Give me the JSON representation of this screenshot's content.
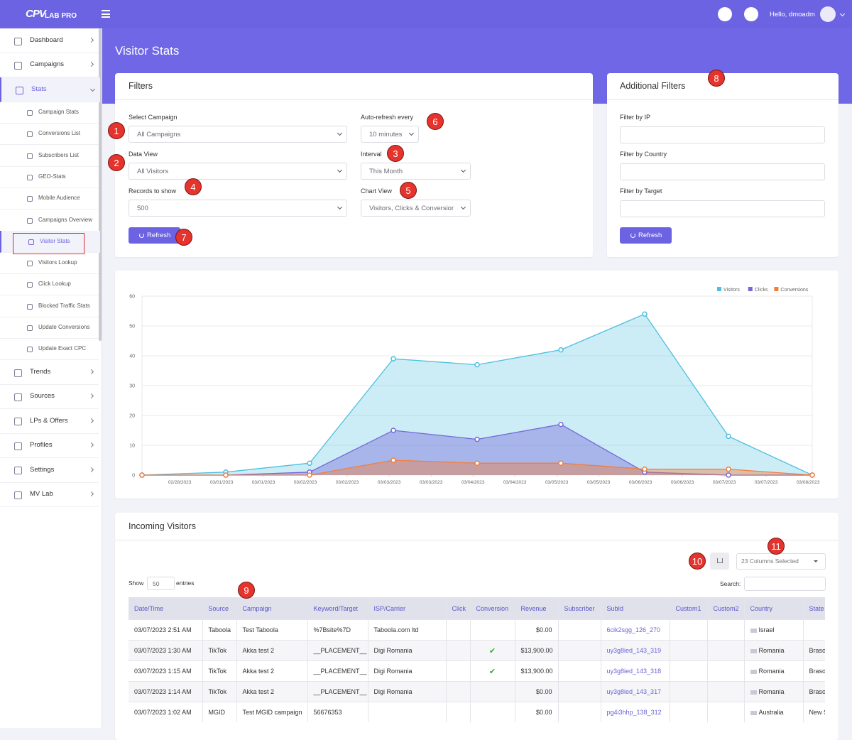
{
  "header": {
    "logo_mark": "CPV",
    "logo_text": "LAB PRO",
    "greeting": "Hello, dmoadm"
  },
  "sidebar": {
    "top": [
      "Dashboard",
      "Campaigns",
      "Stats"
    ],
    "stats_submenu": [
      "Campaign Stats",
      "Conversions List",
      "Subscribers List",
      "GEO-Stats",
      "Mobile Audience",
      "Campaigns Overview",
      "Visitor Stats",
      "Visitors Lookup",
      "Click Lookup",
      "Blocked Traffic Stats",
      "Update Conversions",
      "Update Exact CPC"
    ],
    "bottom": [
      "Trends",
      "Sources",
      "LPs & Offers",
      "Profiles",
      "Settings",
      "MV Lab"
    ]
  },
  "page_title": "Visitor Stats",
  "filters": {
    "title": "Filters",
    "fields": [
      {
        "label": "Select Campaign",
        "value": "All Campaigns"
      },
      {
        "label": "Data View",
        "value": "All Visitors"
      },
      {
        "label": "Records to show",
        "value": "500"
      },
      {
        "label": "Auto-refresh every",
        "value": "10 minutes"
      },
      {
        "label": "Interval",
        "value": "This Month"
      },
      {
        "label": "Chart View",
        "value": "Visitors, Clicks & Conversions"
      }
    ],
    "button": "Refresh"
  },
  "additional_filters": {
    "title": "Additional Filters",
    "fields": [
      "Filter by IP",
      "Filter by Country",
      "Filter by Target"
    ],
    "button": "Refresh"
  },
  "chart_data": {
    "type": "area",
    "x": [
      0,
      1,
      2,
      3,
      4,
      5,
      6,
      7,
      8
    ],
    "xlim": [
      0,
      8
    ],
    "xticks": [
      {
        "value": 0.45,
        "label": "02/28/2023"
      },
      {
        "value": 0.95,
        "label": "03/01/2023"
      },
      {
        "value": 1.45,
        "label": "03/01/2023"
      },
      {
        "value": 1.95,
        "label": "03/02/2023"
      },
      {
        "value": 2.45,
        "label": "03/02/2023"
      },
      {
        "value": 2.95,
        "label": "03/03/2023"
      },
      {
        "value": 3.45,
        "label": "03/03/2023"
      },
      {
        "value": 3.95,
        "label": "03/04/2023"
      },
      {
        "value": 4.45,
        "label": "03/04/2023"
      },
      {
        "value": 4.95,
        "label": "03/05/2023"
      },
      {
        "value": 5.45,
        "label": "03/05/2023"
      },
      {
        "value": 5.95,
        "label": "03/06/2023"
      },
      {
        "value": 6.45,
        "label": "03/06/2023"
      },
      {
        "value": 6.95,
        "label": "03/07/2023"
      },
      {
        "value": 7.45,
        "label": "03/07/2023"
      },
      {
        "value": 7.95,
        "label": "03/08/2023"
      }
    ],
    "ylim": [
      0,
      60
    ],
    "yticks": [
      0,
      10,
      20,
      30,
      40,
      50,
      60
    ],
    "grid": true,
    "legend": "top-right",
    "series": [
      {
        "name": "Visitors",
        "color": "#4dbfe0",
        "values": [
          0,
          1,
          4,
          39,
          37,
          42,
          54,
          13,
          0
        ]
      },
      {
        "name": "Clicks",
        "color": "#7468d8",
        "values": [
          0,
          0,
          1,
          15,
          12,
          17,
          1,
          0,
          0
        ]
      },
      {
        "name": "Conversions",
        "color": "#f07f3c",
        "values": [
          0,
          0,
          0,
          5,
          4,
          4,
          2,
          2,
          0
        ]
      }
    ]
  },
  "incoming_visitors": {
    "title": "Incoming Visitors",
    "columns_selected": "23 Columns Selected",
    "show_label": "Show",
    "page_length": "50",
    "entries_label": "entries",
    "search_label": "Search:",
    "table": {
      "columns": [
        "Date/Time",
        "Source",
        "Campaign",
        "Keyword/Target",
        "ISP/Carrier",
        "Click",
        "Conversion",
        "Revenue",
        "Subscriber",
        "SubId",
        "Custom1",
        "Custom2",
        "Country",
        "State"
      ],
      "rows": [
        [
          "03/07/2023 2:51 AM",
          "Taboola",
          "Test Taboola",
          "%7Bsite%7D",
          "Taboola.com ltd",
          null,
          null,
          "$0.00",
          null,
          "6cik2sgg_126_270",
          null,
          null,
          "Israel",
          null
        ],
        [
          "03/07/2023 1:30 AM",
          "TikTok",
          "Akka test 2",
          "__PLACEMENT__",
          "Digi Romania",
          null,
          "✔",
          "$13,900.00",
          null,
          "uy3g8ied_143_319",
          null,
          null,
          "Romania",
          "Brasov"
        ],
        [
          "03/07/2023 1:15 AM",
          "TikTok",
          "Akka test 2",
          "__PLACEMENT__",
          "Digi Romania",
          null,
          "✔",
          "$13,900.00",
          null,
          "uy3g8ied_143_318",
          null,
          null,
          "Romania",
          "Brasov"
        ],
        [
          "03/07/2023 1:14 AM",
          "TikTok",
          "Akka test 2",
          "__PLACEMENT__",
          "Digi Romania",
          null,
          null,
          "$0.00",
          null,
          "uy3g8ied_143_317",
          null,
          null,
          "Romania",
          "Brasov"
        ],
        [
          "03/07/2023 1:02 AM",
          "MGID",
          "Test MGID campaign",
          "56676353",
          null,
          null,
          null,
          "$0.00",
          null,
          "pg4i3hhp_138_312",
          null,
          null,
          "Australia",
          "New South Wales"
        ]
      ]
    }
  },
  "annotations": [
    "1",
    "2",
    "3",
    "4",
    "5",
    "6",
    "7",
    "8",
    "9",
    "10",
    "11"
  ]
}
